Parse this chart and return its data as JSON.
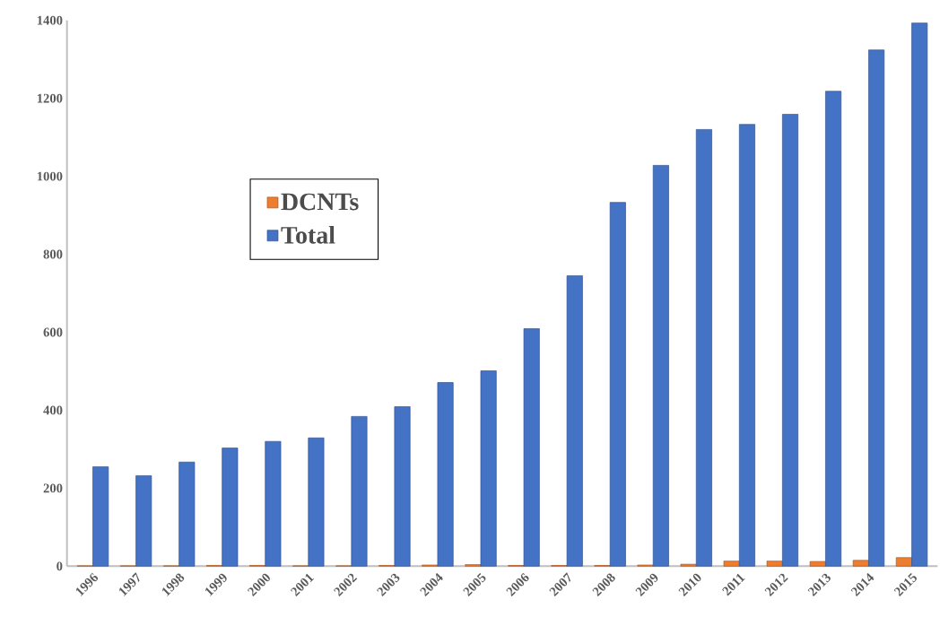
{
  "chart_data": {
    "type": "bar",
    "categories": [
      "1996",
      "1997",
      "1998",
      "1999",
      "2000",
      "2001",
      "2002",
      "2003",
      "2004",
      "2005",
      "2006",
      "2007",
      "2008",
      "2009",
      "2010",
      "2011",
      "2012",
      "2013",
      "2014",
      "2015"
    ],
    "series": [
      {
        "name": "DCNTs",
        "color": "#ed7d31",
        "values": [
          1,
          1,
          1,
          2,
          2,
          1,
          1,
          2,
          3,
          4,
          2,
          2,
          2,
          3,
          5,
          13,
          13,
          12,
          15,
          22
        ]
      },
      {
        "name": "Total",
        "color": "#4472c4",
        "values": [
          255,
          232,
          267,
          303,
          320,
          329,
          384,
          409,
          471,
          501,
          609,
          745,
          933,
          1028,
          1120,
          1133,
          1159,
          1218,
          1324,
          1393
        ]
      }
    ],
    "ylim": [
      0,
      1400
    ],
    "yticks": [
      0,
      200,
      400,
      600,
      800,
      1000,
      1200,
      1400
    ],
    "grid": false,
    "legend": "top left"
  }
}
